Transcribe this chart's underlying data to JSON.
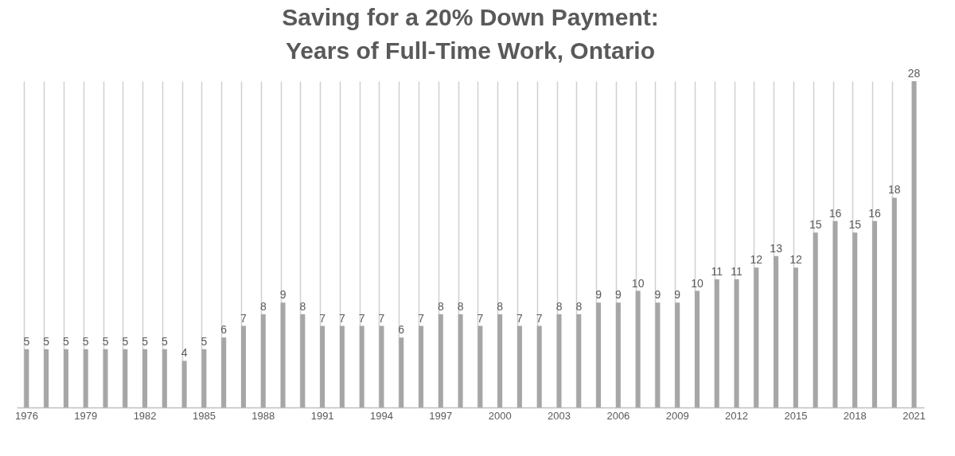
{
  "chart_data": {
    "type": "bar",
    "title": [
      "Saving for a 20% Down Payment:",
      "Years of Full-Time Work, Ontario"
    ],
    "categories": [
      "1976",
      null,
      null,
      "1979",
      null,
      null,
      "1982",
      null,
      null,
      "1985",
      null,
      null,
      "1988",
      null,
      null,
      "1991",
      null,
      null,
      "1994",
      null,
      null,
      "1997",
      null,
      null,
      "2000",
      null,
      null,
      "2003",
      null,
      null,
      "2006",
      null,
      null,
      "2009",
      null,
      null,
      "2012",
      null,
      null,
      "2015",
      null,
      null,
      "2018",
      null,
      null,
      "2021"
    ],
    "values": [
      5,
      5,
      5,
      5,
      5,
      5,
      5,
      5,
      4,
      5,
      6,
      7,
      8,
      9,
      8,
      7,
      7,
      7,
      7,
      6,
      7,
      8,
      8,
      7,
      8,
      7,
      7,
      8,
      8,
      9,
      9,
      10,
      9,
      9,
      10,
      11,
      11,
      12,
      13,
      12,
      15,
      16,
      15,
      16,
      18,
      28
    ],
    "color": "#a6a6a6",
    "data_labels": true,
    "grid": "x"
  }
}
